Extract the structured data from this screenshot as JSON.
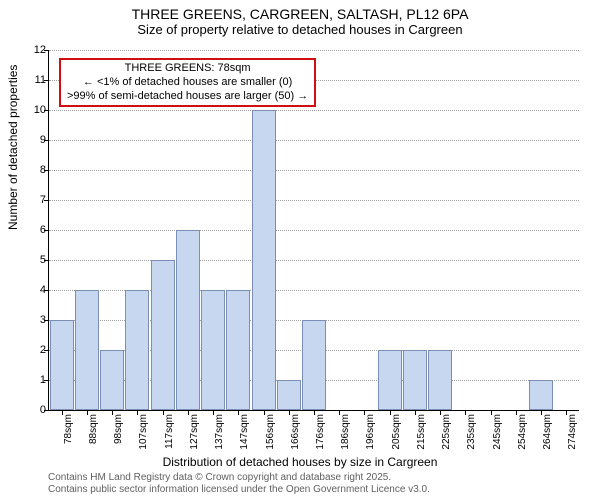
{
  "titles": {
    "main": "THREE GREENS, CARGREEN, SALTASH, PL12 6PA",
    "sub": "Size of property relative to detached houses in Cargreen"
  },
  "axes": {
    "ylabel": "Number of detached properties",
    "xlabel": "Distribution of detached houses by size in Cargreen",
    "ylim": [
      0,
      12
    ],
    "ytick_step": 1,
    "label_fontsize": 12
  },
  "chart": {
    "type": "histogram",
    "categories": [
      "78sqm",
      "88sqm",
      "98sqm",
      "107sqm",
      "117sqm",
      "127sqm",
      "137sqm",
      "147sqm",
      "156sqm",
      "166sqm",
      "176sqm",
      "186sqm",
      "196sqm",
      "205sqm",
      "215sqm",
      "225sqm",
      "235sqm",
      "245sqm",
      "254sqm",
      "264sqm",
      "274sqm"
    ],
    "values": [
      3,
      4,
      2,
      4,
      5,
      6,
      4,
      4,
      10,
      1,
      3,
      0,
      0,
      2,
      2,
      2,
      0,
      0,
      0,
      1,
      0
    ],
    "bar_color": "#c7d7ef",
    "bar_border": "#7b8fb5",
    "bar_width": 0.95,
    "background_color": "#ffffff",
    "grid_color": "#a0a0a0"
  },
  "annotation": {
    "line1": "THREE GREENS: 78sqm",
    "line2": "← <1% of detached houses are smaller (0)",
    "line3": ">99% of semi-detached houses are larger (50) →",
    "border_color": "#d01010"
  },
  "footer": {
    "line1": "Contains HM Land Registry data © Crown copyright and database right 2025.",
    "line2": "Contains public sector information licensed under the Open Government Licence v3.0."
  }
}
